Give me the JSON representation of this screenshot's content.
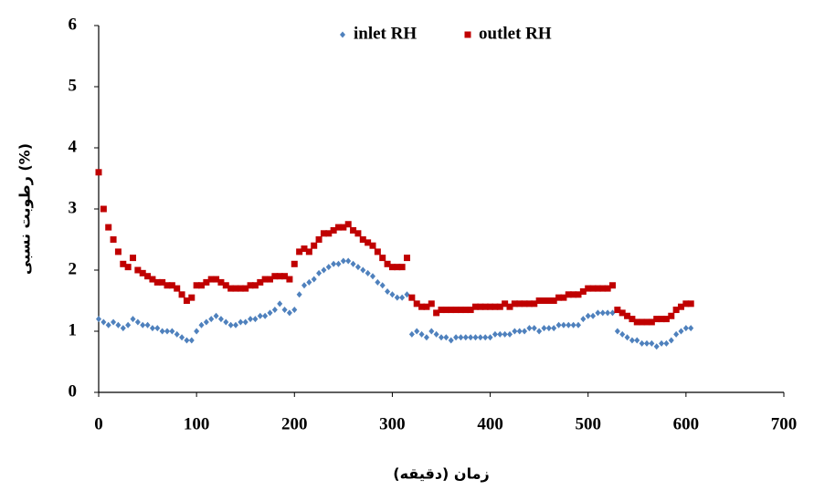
{
  "chart_data": {
    "type": "scatter",
    "x_label": "زمان (دقیقه)",
    "y_label": "رطوبت نسبی (%)",
    "x": [
      0,
      5,
      10,
      15,
      20,
      25,
      30,
      35,
      40,
      45,
      50,
      55,
      60,
      65,
      70,
      75,
      80,
      85,
      90,
      95,
      100,
      105,
      110,
      115,
      120,
      125,
      130,
      135,
      140,
      145,
      150,
      155,
      160,
      165,
      170,
      175,
      180,
      185,
      190,
      195,
      200,
      205,
      210,
      215,
      220,
      225,
      230,
      235,
      240,
      245,
      250,
      255,
      260,
      265,
      270,
      275,
      280,
      285,
      290,
      295,
      300,
      305,
      310,
      315,
      320,
      325,
      330,
      335,
      340,
      345,
      350,
      355,
      360,
      365,
      370,
      375,
      380,
      385,
      390,
      395,
      400,
      405,
      410,
      415,
      420,
      425,
      430,
      435,
      440,
      445,
      450,
      455,
      460,
      465,
      470,
      475,
      480,
      485,
      490,
      495,
      500,
      505,
      510,
      515,
      520,
      525,
      530,
      535,
      540,
      545,
      550,
      555,
      560,
      565,
      570,
      575,
      580,
      585,
      590,
      595,
      600,
      605
    ],
    "series": [
      {
        "name": "inlet RH",
        "color": "#4f81bd",
        "marker": "diamond",
        "values": [
          1.2,
          1.15,
          1.1,
          1.15,
          1.1,
          1.05,
          1.1,
          1.2,
          1.15,
          1.1,
          1.1,
          1.05,
          1.05,
          1.0,
          1.0,
          1.0,
          0.95,
          0.9,
          0.85,
          0.85,
          1.0,
          1.1,
          1.15,
          1.2,
          1.25,
          1.2,
          1.15,
          1.1,
          1.1,
          1.15,
          1.15,
          1.2,
          1.2,
          1.25,
          1.25,
          1.3,
          1.35,
          1.45,
          1.35,
          1.3,
          1.35,
          1.6,
          1.75,
          1.8,
          1.85,
          1.95,
          2.0,
          2.05,
          2.1,
          2.1,
          2.15,
          2.15,
          2.1,
          2.05,
          2.0,
          1.95,
          1.9,
          1.8,
          1.75,
          1.65,
          1.6,
          1.55,
          1.55,
          1.6,
          0.95,
          1.0,
          0.95,
          0.9,
          1.0,
          0.95,
          0.9,
          0.9,
          0.85,
          0.9,
          0.9,
          0.9,
          0.9,
          0.9,
          0.9,
          0.9,
          0.9,
          0.95,
          0.95,
          0.95,
          0.95,
          1.0,
          1.0,
          1.0,
          1.05,
          1.05,
          1.0,
          1.05,
          1.05,
          1.05,
          1.1,
          1.1,
          1.1,
          1.1,
          1.1,
          1.2,
          1.25,
          1.25,
          1.3,
          1.3,
          1.3,
          1.3,
          1.0,
          0.95,
          0.9,
          0.85,
          0.85,
          0.8,
          0.8,
          0.8,
          0.75,
          0.8,
          0.8,
          0.85,
          0.95,
          1.0,
          1.05,
          1.05
        ]
      },
      {
        "name": "outlet RH",
        "color": "#c00000",
        "marker": "square",
        "values": [
          3.6,
          3.0,
          2.7,
          2.5,
          2.3,
          2.1,
          2.05,
          2.2,
          2.0,
          1.95,
          1.9,
          1.85,
          1.8,
          1.8,
          1.75,
          1.75,
          1.7,
          1.6,
          1.5,
          1.55,
          1.75,
          1.75,
          1.8,
          1.85,
          1.85,
          1.8,
          1.75,
          1.7,
          1.7,
          1.7,
          1.7,
          1.75,
          1.75,
          1.8,
          1.85,
          1.85,
          1.9,
          1.9,
          1.9,
          1.85,
          2.1,
          2.3,
          2.35,
          2.3,
          2.4,
          2.5,
          2.6,
          2.6,
          2.65,
          2.7,
          2.7,
          2.75,
          2.65,
          2.6,
          2.5,
          2.45,
          2.4,
          2.3,
          2.2,
          2.1,
          2.05,
          2.05,
          2.05,
          2.2,
          1.55,
          1.45,
          1.4,
          1.4,
          1.45,
          1.3,
          1.35,
          1.35,
          1.35,
          1.35,
          1.35,
          1.35,
          1.35,
          1.4,
          1.4,
          1.4,
          1.4,
          1.4,
          1.4,
          1.45,
          1.4,
          1.45,
          1.45,
          1.45,
          1.45,
          1.45,
          1.5,
          1.5,
          1.5,
          1.5,
          1.55,
          1.55,
          1.6,
          1.6,
          1.6,
          1.65,
          1.7,
          1.7,
          1.7,
          1.7,
          1.7,
          1.75,
          1.35,
          1.3,
          1.25,
          1.2,
          1.15,
          1.15,
          1.15,
          1.15,
          1.2,
          1.2,
          1.2,
          1.25,
          1.35,
          1.4,
          1.45,
          1.45
        ]
      }
    ],
    "xlim": [
      0,
      700
    ],
    "xticks": [
      0,
      100,
      200,
      300,
      400,
      500,
      600,
      700
    ],
    "ylim": [
      0,
      6
    ],
    "yticks": [
      0,
      1,
      2,
      3,
      4,
      5,
      6
    ],
    "grid": false,
    "legend": "top"
  }
}
